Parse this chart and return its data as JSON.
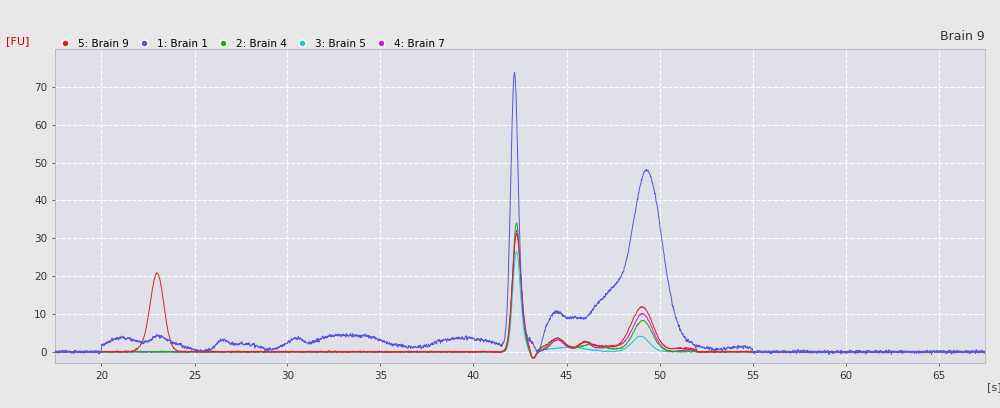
{
  "title_label": "Brain 9",
  "ylabel": "[FU]",
  "xlabel": "[s]",
  "xlim": [
    17.5,
    67.5
  ],
  "ylim": [
    -3,
    80
  ],
  "yticks": [
    0,
    10,
    20,
    30,
    40,
    50,
    60,
    70
  ],
  "xticks": [
    20,
    25,
    30,
    35,
    40,
    45,
    50,
    55,
    60,
    65
  ],
  "background_color": "#e8e8e8",
  "plot_bg_color": "#e0e0e8",
  "grid_color": "#ffffff",
  "series": [
    {
      "name": "5: Brain 9",
      "color": "#dd2222",
      "marker_color": "#dd2222"
    },
    {
      "name": "1: Brain 1",
      "color": "#5555dd",
      "marker_color": "#5555dd"
    },
    {
      "name": "2: Brain 4",
      "color": "#22aa22",
      "marker_color": "#22aa22"
    },
    {
      "name": "3: Brain 5",
      "color": "#22cccc",
      "marker_color": "#22cccc"
    },
    {
      "name": "4: Brain 7",
      "color": "#cc22cc",
      "marker_color": "#cc22cc"
    }
  ]
}
